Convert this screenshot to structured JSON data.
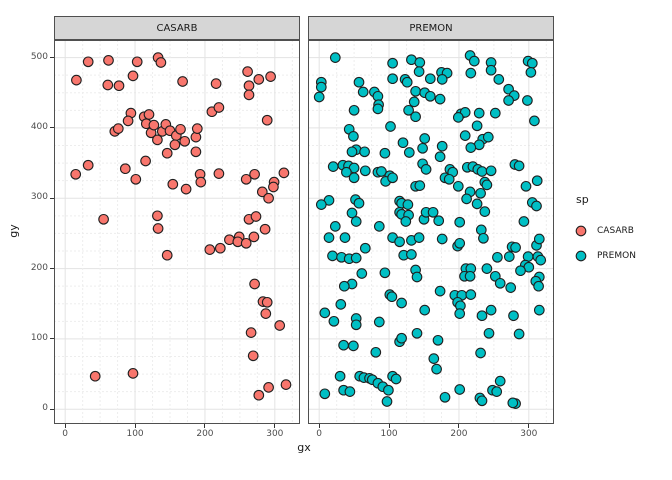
{
  "facets": [
    {
      "label": "CASARB"
    },
    {
      "label": "PREMON"
    }
  ],
  "axes": {
    "x": {
      "title": "gx",
      "ticks": [
        0,
        100,
        200,
        300
      ]
    },
    "y": {
      "title": "gy",
      "ticks": [
        0,
        100,
        200,
        300,
        400,
        500
      ]
    }
  },
  "legend": {
    "title": "sp",
    "items": [
      {
        "label": "CASARB",
        "color": "#F8766D"
      },
      {
        "label": "PREMON",
        "color": "#00BFC4"
      }
    ]
  },
  "style": {
    "point_stroke": "#1F1F1F",
    "strip_background": "#D6D6D6",
    "panel_border": "#4F4F4F",
    "grid_major": "#E3E3E3",
    "grid_minor": "#EDEDED"
  },
  "chart_data": {
    "type": "scatter",
    "xlabel": "gx",
    "ylabel": "gy",
    "facet_variable": "sp",
    "facet_titles": [
      "CASARB",
      "PREMON"
    ],
    "x_ticks": [
      0,
      100,
      200,
      300
    ],
    "y_ticks": [
      0,
      100,
      200,
      300,
      400,
      500
    ],
    "xlim": [
      -16,
      336
    ],
    "ylim": [
      -21,
      525
    ],
    "minor_grid_step": 25,
    "grid": "major-solid minor-dashed",
    "legend_position": "right",
    "series": [
      {
        "name": "CASARB",
        "fill": "#F8766D",
        "points": [
          [
            33,
            494
          ],
          [
            62,
            496
          ],
          [
            103,
            494
          ],
          [
            133,
            500
          ],
          [
            137,
            493
          ],
          [
            16,
            468
          ],
          [
            61,
            461
          ],
          [
            77,
            460
          ],
          [
            97,
            474
          ],
          [
            168,
            466
          ],
          [
            216,
            463
          ],
          [
            261,
            480
          ],
          [
            263,
            460
          ],
          [
            263,
            447
          ],
          [
            277,
            469
          ],
          [
            294,
            473
          ],
          [
            94,
            421
          ],
          [
            71,
            395
          ],
          [
            76,
            399
          ],
          [
            90,
            410
          ],
          [
            113,
            416
          ],
          [
            116,
            406
          ],
          [
            120,
            419
          ],
          [
            123,
            393
          ],
          [
            127,
            404
          ],
          [
            132,
            383
          ],
          [
            139,
            395
          ],
          [
            144,
            405
          ],
          [
            150,
            396
          ],
          [
            159,
            389
          ],
          [
            165,
            398
          ],
          [
            157,
            376
          ],
          [
            171,
            381
          ],
          [
            187,
            387
          ],
          [
            189,
            399
          ],
          [
            210,
            423
          ],
          [
            220,
            429
          ],
          [
            289,
            411
          ],
          [
            146,
            364
          ],
          [
            187,
            366
          ],
          [
            115,
            353
          ],
          [
            33,
            347
          ],
          [
            15,
            334
          ],
          [
            86,
            342
          ],
          [
            101,
            327
          ],
          [
            154,
            320
          ],
          [
            173,
            313
          ],
          [
            193,
            334
          ],
          [
            194,
            323
          ],
          [
            220,
            335
          ],
          [
            259,
            327
          ],
          [
            271,
            334
          ],
          [
            282,
            309
          ],
          [
            291,
            300
          ],
          [
            299,
            323
          ],
          [
            298,
            316
          ],
          [
            313,
            336
          ],
          [
            55,
            270
          ],
          [
            132,
            275
          ],
          [
            133,
            257
          ],
          [
            263,
            270
          ],
          [
            273,
            274
          ],
          [
            286,
            256
          ],
          [
            249,
            245
          ],
          [
            207,
            227
          ],
          [
            222,
            229
          ],
          [
            235,
            241
          ],
          [
            247,
            238
          ],
          [
            259,
            236
          ],
          [
            270,
            245
          ],
          [
            146,
            219
          ],
          [
            271,
            178
          ],
          [
            283,
            153
          ],
          [
            289,
            152
          ],
          [
            287,
            136
          ],
          [
            266,
            109
          ],
          [
            307,
            119
          ],
          [
            269,
            76
          ],
          [
            43,
            47
          ],
          [
            97,
            51
          ],
          [
            277,
            20
          ],
          [
            291,
            31
          ],
          [
            316,
            35
          ]
        ]
      },
      {
        "name": "PREMON",
        "fill": "#00BFC4",
        "points": [
          [
            23,
            500
          ],
          [
            105,
            492
          ],
          [
            132,
            497
          ],
          [
            144,
            493
          ],
          [
            143,
            480
          ],
          [
            3,
            465
          ],
          [
            3,
            458
          ],
          [
            0,
            444
          ],
          [
            57,
            465
          ],
          [
            63,
            451
          ],
          [
            79,
            451
          ],
          [
            84,
            445
          ],
          [
            85,
            433
          ],
          [
            84,
            427
          ],
          [
            105,
            470
          ],
          [
            123,
            469
          ],
          [
            126,
            465
          ],
          [
            138,
            452
          ],
          [
            151,
            450
          ],
          [
            136,
            437
          ],
          [
            128,
            425
          ],
          [
            138,
            416
          ],
          [
            50,
            425
          ],
          [
            102,
            402
          ],
          [
            43,
            398
          ],
          [
            49,
            388
          ],
          [
            53,
            369
          ],
          [
            47,
            366
          ],
          [
            65,
            366
          ],
          [
            120,
            379
          ],
          [
            129,
            365
          ],
          [
            151,
            385
          ],
          [
            148,
            371
          ],
          [
            94,
            364
          ],
          [
            20,
            345
          ],
          [
            34,
            347
          ],
          [
            42,
            346
          ],
          [
            50,
            343
          ],
          [
            39,
            337
          ],
          [
            50,
            329
          ],
          [
            66,
            339
          ],
          [
            84,
            337
          ],
          [
            89,
            338
          ],
          [
            101,
            332
          ],
          [
            95,
            324
          ],
          [
            105,
            329
          ],
          [
            138,
            317
          ],
          [
            144,
            318
          ],
          [
            148,
            349
          ],
          [
            153,
            341
          ],
          [
            14,
            297
          ],
          [
            3,
            291
          ],
          [
            52,
            298
          ],
          [
            57,
            293
          ],
          [
            47,
            279
          ],
          [
            53,
            267
          ],
          [
            115,
            296
          ],
          [
            118,
            293
          ],
          [
            127,
            291
          ],
          [
            115,
            280
          ],
          [
            118,
            277
          ],
          [
            128,
            276
          ],
          [
            124,
            267
          ],
          [
            150,
            270
          ],
          [
            153,
            280
          ],
          [
            23,
            260
          ],
          [
            86,
            260
          ],
          [
            216,
            503
          ],
          [
            222,
            495
          ],
          [
            246,
            493
          ],
          [
            246,
            482
          ],
          [
            217,
            478
          ],
          [
            175,
            479
          ],
          [
            183,
            478
          ],
          [
            159,
            470
          ],
          [
            176,
            469
          ],
          [
            299,
            495
          ],
          [
            305,
            492
          ],
          [
            303,
            479
          ],
          [
            257,
            469
          ],
          [
            271,
            455
          ],
          [
            279,
            446
          ],
          [
            271,
            439
          ],
          [
            298,
            439
          ],
          [
            159,
            445
          ],
          [
            173,
            441
          ],
          [
            203,
            420
          ],
          [
            209,
            422
          ],
          [
            199,
            415
          ],
          [
            229,
            421
          ],
          [
            252,
            421
          ],
          [
            226,
            403
          ],
          [
            308,
            410
          ],
          [
            209,
            389
          ],
          [
            234,
            384
          ],
          [
            242,
            387
          ],
          [
            229,
            376
          ],
          [
            217,
            372
          ],
          [
            176,
            374
          ],
          [
            173,
            359
          ],
          [
            187,
            341
          ],
          [
            191,
            337
          ],
          [
            180,
            329
          ],
          [
            186,
            327
          ],
          [
            212,
            344
          ],
          [
            220,
            345
          ],
          [
            227,
            341
          ],
          [
            233,
            338
          ],
          [
            246,
            339
          ],
          [
            237,
            323
          ],
          [
            240,
            319
          ],
          [
            280,
            348
          ],
          [
            286,
            346
          ],
          [
            199,
            317
          ],
          [
            216,
            309
          ],
          [
            231,
            307
          ],
          [
            312,
            325
          ],
          [
            296,
            317
          ],
          [
            211,
            299
          ],
          [
            226,
            292
          ],
          [
            305,
            294
          ],
          [
            311,
            289
          ],
          [
            237,
            281
          ],
          [
            163,
            280
          ],
          [
            171,
            268
          ],
          [
            201,
            266
          ],
          [
            293,
            267
          ],
          [
            232,
            255
          ],
          [
            313,
            217
          ],
          [
            317,
            212
          ],
          [
            14,
            244
          ],
          [
            37,
            244
          ],
          [
            66,
            229
          ],
          [
            19,
            218
          ],
          [
            32,
            216
          ],
          [
            43,
            214
          ],
          [
            53,
            215
          ],
          [
            105,
            244
          ],
          [
            115,
            238
          ],
          [
            132,
            240
          ],
          [
            143,
            244
          ],
          [
            121,
            219
          ],
          [
            132,
            220
          ],
          [
            94,
            194
          ],
          [
            61,
            193
          ],
          [
            47,
            178
          ],
          [
            36,
            175
          ],
          [
            138,
            198
          ],
          [
            140,
            188
          ],
          [
            101,
            163
          ],
          [
            104,
            160
          ],
          [
            118,
            151
          ],
          [
            31,
            149
          ],
          [
            8,
            137
          ],
          [
            21,
            125
          ],
          [
            53,
            129
          ],
          [
            53,
            120
          ],
          [
            86,
            124
          ],
          [
            151,
            141
          ],
          [
            115,
            96
          ],
          [
            118,
            101
          ],
          [
            140,
            108
          ],
          [
            35,
            91
          ],
          [
            49,
            90
          ],
          [
            81,
            81
          ],
          [
            30,
            47
          ],
          [
            58,
            47
          ],
          [
            64,
            45
          ],
          [
            72,
            44
          ],
          [
            76,
            42
          ],
          [
            84,
            37
          ],
          [
            91,
            32
          ],
          [
            99,
            27
          ],
          [
            105,
            47
          ],
          [
            110,
            43
          ],
          [
            35,
            27
          ],
          [
            44,
            25
          ],
          [
            8,
            22
          ],
          [
            97,
            11
          ],
          [
            176,
            242
          ],
          [
            198,
            232
          ],
          [
            201,
            236
          ],
          [
            235,
            243
          ],
          [
            276,
            231
          ],
          [
            281,
            230
          ],
          [
            311,
            233
          ],
          [
            315,
            242
          ],
          [
            255,
            216
          ],
          [
            272,
            217
          ],
          [
            299,
            217
          ],
          [
            295,
            205
          ],
          [
            300,
            202
          ],
          [
            210,
            200
          ],
          [
            217,
            200
          ],
          [
            208,
            189
          ],
          [
            216,
            189
          ],
          [
            240,
            200
          ],
          [
            252,
            189
          ],
          [
            259,
            179
          ],
          [
            288,
            197
          ],
          [
            315,
            188
          ],
          [
            310,
            182
          ],
          [
            314,
            175
          ],
          [
            274,
            173
          ],
          [
            173,
            168
          ],
          [
            194,
            162
          ],
          [
            204,
            162
          ],
          [
            217,
            163
          ],
          [
            198,
            152
          ],
          [
            202,
            147
          ],
          [
            201,
            136
          ],
          [
            246,
            141
          ],
          [
            233,
            133
          ],
          [
            315,
            141
          ],
          [
            278,
            133
          ],
          [
            243,
            108
          ],
          [
            286,
            107
          ],
          [
            170,
            98
          ],
          [
            231,
            80
          ],
          [
            164,
            72
          ],
          [
            168,
            57
          ],
          [
            259,
            40
          ],
          [
            248,
            27
          ],
          [
            254,
            25
          ],
          [
            201,
            28
          ],
          [
            180,
            17
          ],
          [
            230,
            16
          ],
          [
            233,
            12
          ],
          [
            281,
            8
          ],
          [
            277,
            9
          ]
        ]
      }
    ]
  }
}
